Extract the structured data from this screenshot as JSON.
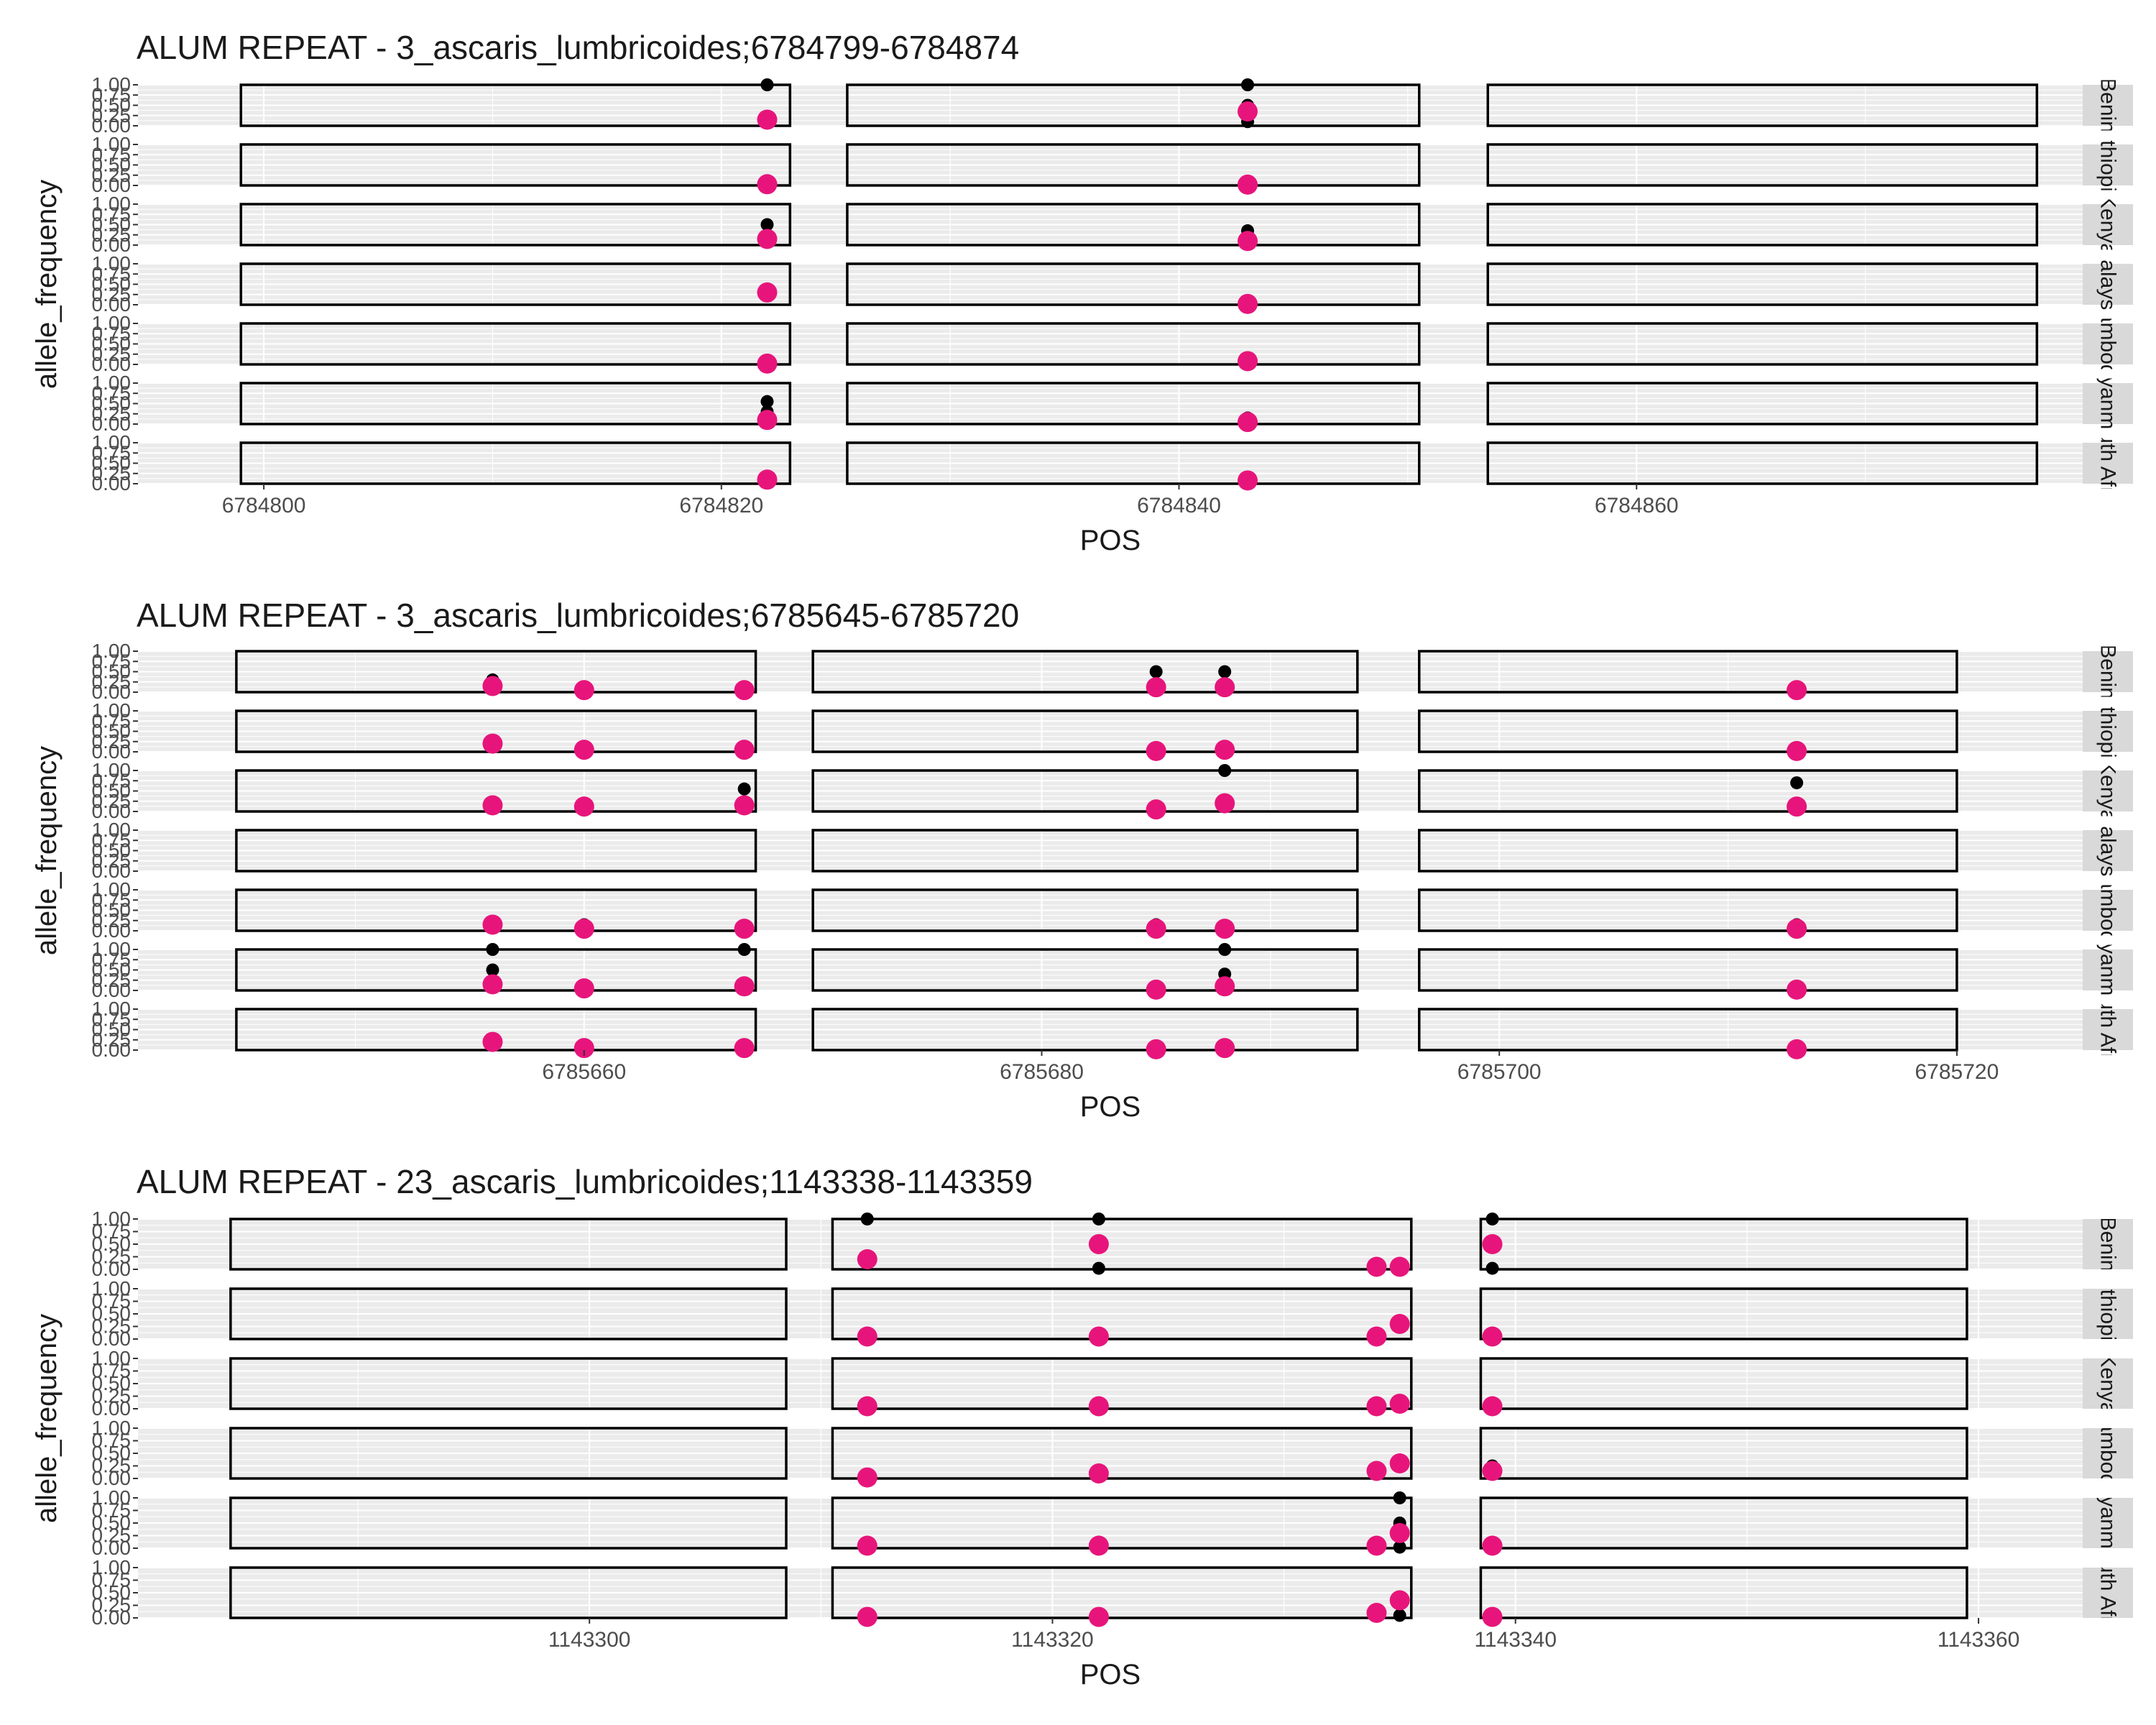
{
  "colors": {
    "panel_bg": "#ebebeb",
    "gridline_major": "#ffffff",
    "strip_bg": "#d9d9d9",
    "repeat_box": "#000000",
    "series_black": "#000000",
    "series_pink": "#e7157b",
    "text": "#1a1a1a",
    "tick_text": "#4d4d4d"
  },
  "chart_data": [
    {
      "type": "scatter",
      "title": "ALUM REPEAT - 3_ascaris_lumbricoides;6784799-6784874",
      "xlabel": "POS",
      "ylabel": "allele_frequency",
      "xlim": [
        6784794.5,
        6784879.5
      ],
      "xticks": [
        6784800,
        6784820,
        6784840,
        6784860
      ],
      "xtick_labels": [
        "6784800",
        "6784820",
        "6784840",
        "6784860"
      ],
      "ylim": [
        0,
        1
      ],
      "yticks": [
        0,
        0.25,
        0.5,
        0.75,
        1
      ],
      "ytick_labels": [
        "0.00",
        "0.25",
        "0.50",
        "0.75",
        "1.00"
      ],
      "repeat_boxes": [
        [
          6784799,
          6784823
        ],
        [
          6784825.5,
          6784850.5
        ],
        [
          6784853.5,
          6784877.5
        ]
      ],
      "facets": [
        {
          "strip": "Benin",
          "black": [
            [
              6784822,
              1.0
            ],
            [
              6784843,
              0.5
            ],
            [
              6784843,
              1.0
            ],
            [
              6784843,
              0.1
            ]
          ],
          "pink": [
            [
              6784822,
              0.15
            ],
            [
              6784843,
              0.35
            ]
          ]
        },
        {
          "strip": "Ethiopia",
          "black": [
            [
              6784822,
              0.02
            ],
            [
              6784843,
              0.02
            ]
          ],
          "pink": [
            [
              6784822,
              0.03
            ],
            [
              6784843,
              0.02
            ]
          ]
        },
        {
          "strip": "Kenya",
          "black": [
            [
              6784822,
              0.5
            ],
            [
              6784843,
              0.35
            ]
          ],
          "pink": [
            [
              6784822,
              0.15
            ],
            [
              6784843,
              0.1
            ]
          ]
        },
        {
          "strip": "Malaysia",
          "black": [],
          "pink": [
            [
              6784822,
              0.3
            ],
            [
              6784843,
              0.02
            ]
          ]
        },
        {
          "strip": "Cambodia",
          "black": [],
          "pink": [
            [
              6784822,
              0.02
            ],
            [
              6784843,
              0.08
            ]
          ]
        },
        {
          "strip": "Myanmar",
          "black": [
            [
              6784822,
              0.55
            ],
            [
              6784822,
              0.3
            ],
            [
              6784843,
              0.15
            ]
          ],
          "pink": [
            [
              6784822,
              0.1
            ],
            [
              6784843,
              0.05
            ]
          ]
        },
        {
          "strip": "South Africa",
          "black": [],
          "pink": [
            [
              6784822,
              0.1
            ],
            [
              6784843,
              0.08
            ]
          ]
        }
      ]
    },
    {
      "type": "scatter",
      "title": "ALUM REPEAT - 3_ascaris_lumbricoides;6785645-6785720",
      "xlabel": "POS",
      "ylabel": "allele_frequency",
      "xlim": [
        6785640.5,
        6785725.5
      ],
      "xticks": [
        6785660,
        6785680,
        6785700,
        6785720
      ],
      "xtick_labels": [
        "6785660",
        "6785680",
        "6785700",
        "6785720"
      ],
      "ylim": [
        0,
        1
      ],
      "yticks": [
        0,
        0.25,
        0.5,
        0.75,
        1
      ],
      "ytick_labels": [
        "0.00",
        "0.25",
        "0.50",
        "0.75",
        "1.00"
      ],
      "repeat_boxes": [
        [
          6785644.8,
          6785667.5
        ],
        [
          6785670,
          6785693.8
        ],
        [
          6785696.5,
          6785720
        ]
      ],
      "facets": [
        {
          "strip": "Benin",
          "black": [
            [
              6785656,
              0.3
            ],
            [
              6785685,
              0.5
            ],
            [
              6785688,
              0.5
            ]
          ],
          "pink": [
            [
              6785656,
              0.15
            ],
            [
              6785660,
              0.05
            ],
            [
              6785667,
              0.05
            ],
            [
              6785685,
              0.12
            ],
            [
              6785688,
              0.12
            ],
            [
              6785713,
              0.05
            ]
          ]
        },
        {
          "strip": "Ethiopia",
          "black": [],
          "pink": [
            [
              6785656,
              0.2
            ],
            [
              6785660,
              0.05
            ],
            [
              6785667,
              0.05
            ],
            [
              6785685,
              0.02
            ],
            [
              6785688,
              0.05
            ],
            [
              6785713,
              0.02
            ]
          ]
        },
        {
          "strip": "Kenya",
          "black": [
            [
              6785667,
              0.55
            ],
            [
              6785688,
              1.0
            ],
            [
              6785713,
              0.7
            ]
          ],
          "pink": [
            [
              6785656,
              0.15
            ],
            [
              6785660,
              0.12
            ],
            [
              6785667,
              0.15
            ],
            [
              6785685,
              0.05
            ],
            [
              6785688,
              0.2
            ],
            [
              6785713,
              0.12
            ]
          ]
        },
        {
          "strip": "Malaysia",
          "black": [],
          "pink": []
        },
        {
          "strip": "Cambodia",
          "black": [
            [
              6785660,
              0.15
            ],
            [
              6785685,
              0.15
            ],
            [
              6785713,
              0.15
            ]
          ],
          "pink": [
            [
              6785656,
              0.15
            ],
            [
              6785660,
              0.05
            ],
            [
              6785667,
              0.05
            ],
            [
              6785685,
              0.05
            ],
            [
              6785688,
              0.05
            ],
            [
              6785713,
              0.05
            ]
          ]
        },
        {
          "strip": "Myanmar",
          "black": [
            [
              6785656,
              1.0
            ],
            [
              6785656,
              0.5
            ],
            [
              6785667,
              1.0
            ],
            [
              6785667,
              0.15
            ],
            [
              6785688,
              1.0
            ],
            [
              6785688,
              0.4
            ],
            [
              6785688,
              0.15
            ],
            [
              6785660,
              0.12
            ]
          ],
          "pink": [
            [
              6785656,
              0.15
            ],
            [
              6785660,
              0.05
            ],
            [
              6785667,
              0.1
            ],
            [
              6785685,
              0.02
            ],
            [
              6785688,
              0.1
            ],
            [
              6785713,
              0.02
            ]
          ]
        },
        {
          "strip": "South Africa",
          "black": [],
          "pink": [
            [
              6785656,
              0.2
            ],
            [
              6785660,
              0.05
            ],
            [
              6785667,
              0.05
            ],
            [
              6785685,
              0.02
            ],
            [
              6785688,
              0.05
            ],
            [
              6785713,
              0.02
            ]
          ]
        }
      ]
    },
    {
      "type": "scatter",
      "title": "ALUM REPEAT - 23_ascaris_lumbricoides;1143338-1143359",
      "xlabel": "POS",
      "ylabel": "allele_frequency",
      "xlim": [
        1143280.5,
        1143364.5
      ],
      "xticks": [
        1143300,
        1143320,
        1143340,
        1143360
      ],
      "xtick_labels": [
        "1143300",
        "1143320",
        "1143340",
        "1143360"
      ],
      "ylim": [
        0,
        1
      ],
      "yticks": [
        0,
        0.25,
        0.5,
        0.75,
        1
      ],
      "ytick_labels": [
        "0.00",
        "0.25",
        "0.50",
        "0.75",
        "1.00"
      ],
      "repeat_boxes": [
        [
          1143284.5,
          1143308.5
        ],
        [
          1143310.5,
          1143335.5
        ],
        [
          1143338.5,
          1143359.5
        ]
      ],
      "facets": [
        {
          "strip": "Benin",
          "black": [
            [
              1143312,
              1.0
            ],
            [
              1143322,
              1.0
            ],
            [
              1143322,
              0.02
            ],
            [
              1143339,
              1.0
            ],
            [
              1143339,
              0.02
            ]
          ],
          "pink": [
            [
              1143312,
              0.2
            ],
            [
              1143322,
              0.5
            ],
            [
              1143334,
              0.05
            ],
            [
              1143335,
              0.05
            ],
            [
              1143339,
              0.5
            ]
          ]
        },
        {
          "strip": "Ethiopia",
          "black": [],
          "pink": [
            [
              1143312,
              0.05
            ],
            [
              1143322,
              0.05
            ],
            [
              1143334,
              0.05
            ],
            [
              1143335,
              0.3
            ],
            [
              1143339,
              0.05
            ]
          ]
        },
        {
          "strip": "Kenya",
          "black": [],
          "pink": [
            [
              1143312,
              0.05
            ],
            [
              1143322,
              0.05
            ],
            [
              1143334,
              0.05
            ],
            [
              1143335,
              0.1
            ],
            [
              1143339,
              0.05
            ]
          ]
        },
        {
          "strip": "Cambodia",
          "black": [
            [
              1143322,
              0.15
            ],
            [
              1143339,
              0.25
            ]
          ],
          "pink": [
            [
              1143312,
              0.02
            ],
            [
              1143322,
              0.1
            ],
            [
              1143334,
              0.15
            ],
            [
              1143335,
              0.3
            ],
            [
              1143339,
              0.15
            ]
          ]
        },
        {
          "strip": "Myanmar",
          "black": [
            [
              1143335,
              1.0
            ],
            [
              1143335,
              0.5
            ],
            [
              1143322,
              0.12
            ],
            [
              1143335,
              0.02
            ]
          ],
          "pink": [
            [
              1143312,
              0.05
            ],
            [
              1143322,
              0.05
            ],
            [
              1143334,
              0.05
            ],
            [
              1143335,
              0.3
            ],
            [
              1143339,
              0.05
            ]
          ]
        },
        {
          "strip": "South Africa",
          "black": [
            [
              1143335,
              0.05
            ]
          ],
          "pink": [
            [
              1143312,
              0.02
            ],
            [
              1143322,
              0.02
            ],
            [
              1143334,
              0.1
            ],
            [
              1143335,
              0.35
            ],
            [
              1143339,
              0.02
            ]
          ]
        }
      ]
    }
  ]
}
